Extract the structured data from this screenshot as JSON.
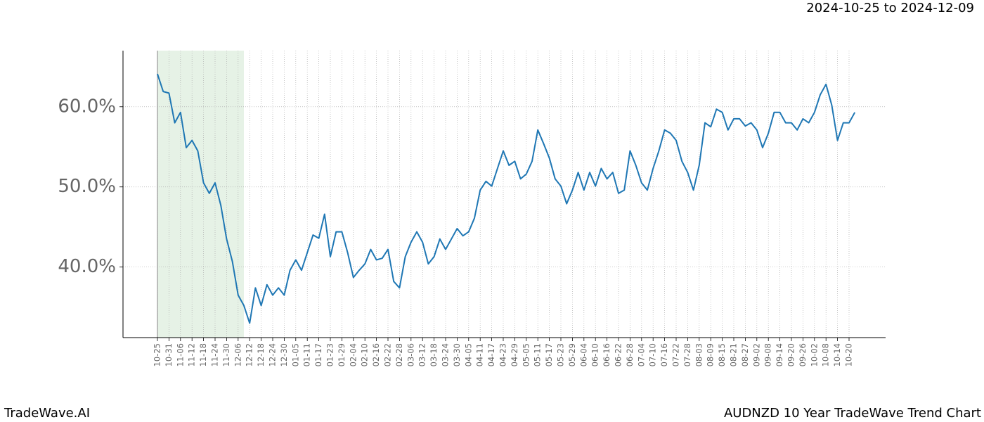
{
  "brand": "TradeWave.AI",
  "chart_data": {
    "type": "line",
    "title": "AUDNZD 10 Year TradeWave Trend Chart",
    "subtitle": "2024-10-25 to 2024-12-09",
    "categories": [
      "10-25",
      null,
      "10-31",
      null,
      "11-06",
      null,
      "11-12",
      null,
      "11-18",
      null,
      "11-24",
      null,
      "11-30",
      null,
      "12-06",
      null,
      "12-12",
      null,
      "12-18",
      null,
      "12-24",
      null,
      "12-30",
      null,
      "01-05",
      null,
      "01-11",
      null,
      "01-17",
      null,
      "01-23",
      null,
      "01-29",
      null,
      "02-04",
      null,
      "02-10",
      null,
      "02-16",
      null,
      "02-22",
      null,
      "02-28",
      null,
      "03-06",
      null,
      "03-12",
      null,
      "03-18",
      null,
      "03-24",
      null,
      "03-30",
      null,
      "04-05",
      null,
      "04-11",
      null,
      "04-17",
      null,
      "04-23",
      null,
      "04-29",
      null,
      "05-05",
      null,
      "05-11",
      null,
      "05-17",
      null,
      "05-23",
      null,
      "05-29",
      null,
      "06-04",
      null,
      "06-10",
      null,
      "06-16",
      null,
      "06-22",
      null,
      "06-28",
      null,
      "07-04",
      null,
      "07-10",
      null,
      "07-16",
      null,
      "07-22",
      null,
      "07-28",
      null,
      "08-03",
      null,
      "08-09",
      null,
      "08-15",
      null,
      "08-21",
      null,
      "08-27",
      null,
      "09-02",
      null,
      "09-08",
      null,
      "09-14",
      null,
      "09-20",
      null,
      "09-26",
      null,
      "10-02",
      null,
      "10-08",
      null,
      "10-14",
      null,
      "10-20",
      null
    ],
    "series": [
      {
        "color": "#1f77b4",
        "values": [
          64.1,
          61.9,
          61.7,
          58.0,
          59.3,
          54.9,
          55.8,
          54.5,
          50.5,
          49.2,
          50.5,
          47.7,
          43.5,
          40.7,
          36.5,
          35.2,
          33.0,
          37.4,
          35.2,
          37.8,
          36.5,
          37.4,
          36.5,
          39.6,
          40.9,
          39.6,
          41.8,
          44.0,
          43.6,
          46.6,
          41.3,
          44.4,
          44.4,
          41.8,
          38.7,
          39.6,
          40.4,
          42.2,
          40.9,
          41.1,
          42.2,
          38.2,
          37.4,
          41.3,
          43.1,
          44.4,
          43.1,
          40.4,
          41.3,
          43.5,
          42.2,
          43.5,
          44.8,
          43.9,
          44.4,
          46.1,
          49.6,
          50.7,
          50.1,
          52.3,
          54.5,
          52.7,
          53.2,
          51.0,
          51.6,
          53.2,
          57.1,
          55.4,
          53.6,
          51.0,
          50.1,
          47.9,
          49.6,
          51.8,
          49.6,
          51.8,
          50.1,
          52.3,
          51.0,
          51.8,
          49.2,
          49.6,
          54.5,
          52.7,
          50.5,
          49.6,
          52.3,
          54.5,
          57.1,
          56.7,
          55.8,
          53.2,
          51.8,
          49.6,
          52.7,
          58.0,
          57.5,
          59.7,
          59.3,
          57.1,
          58.5,
          58.5,
          57.6,
          58.0,
          57.1,
          54.9,
          56.7,
          59.3,
          59.3,
          58.0,
          58.0,
          57.1,
          58.5,
          58.0,
          59.3,
          61.5,
          62.8,
          60.2,
          55.8,
          58.0,
          58.0,
          59.3
        ]
      }
    ],
    "ylim": [
      31.2,
      67.0
    ],
    "yticks": [
      {
        "value": 40,
        "label": "40.0%"
      },
      {
        "value": 50,
        "label": "50.0%"
      },
      {
        "value": 60,
        "label": "60.0%"
      }
    ],
    "grid": true,
    "shaded_span": {
      "from": 0,
      "to": 15,
      "color": "#e6f2e6"
    }
  }
}
